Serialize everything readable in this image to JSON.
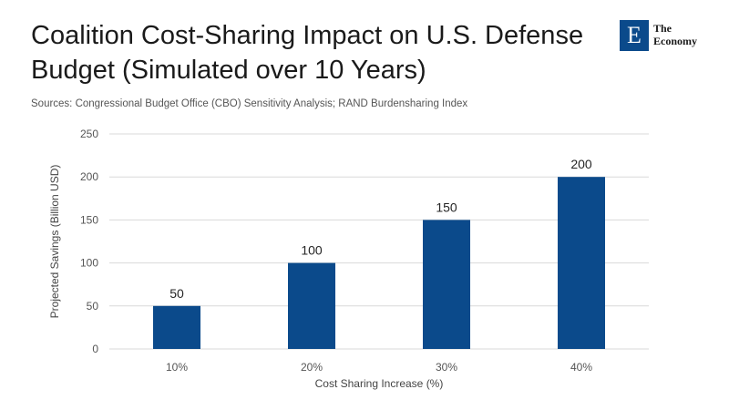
{
  "header": {
    "title": "Coalition Cost-Sharing Impact on U.S. Defense Budget (Simulated over 10 Years)",
    "subtitle": "Sources: Congressional Budget Office (CBO) Sensitivity Analysis; RAND Burdensharing Index"
  },
  "logo": {
    "mark": "E",
    "line1": "The",
    "line2": "Economy"
  },
  "colors": {
    "bar": "#0b4a8b",
    "grid": "#d9d9d9",
    "logo": "#0b4a8b"
  },
  "chart_data": {
    "type": "bar",
    "title": "Coalition Cost-Sharing Impact on U.S. Defense Budget (Simulated over 10 Years)",
    "xlabel": "Cost Sharing Increase (%)",
    "ylabel": "Projected Savings (Billion USD)",
    "categories": [
      "10%",
      "20%",
      "30%",
      "40%"
    ],
    "values": [
      50,
      100,
      150,
      200
    ],
    "ylim": [
      0,
      250
    ],
    "yticks": [
      0,
      50,
      100,
      150,
      200,
      250
    ],
    "grid": true,
    "legend": "none"
  }
}
